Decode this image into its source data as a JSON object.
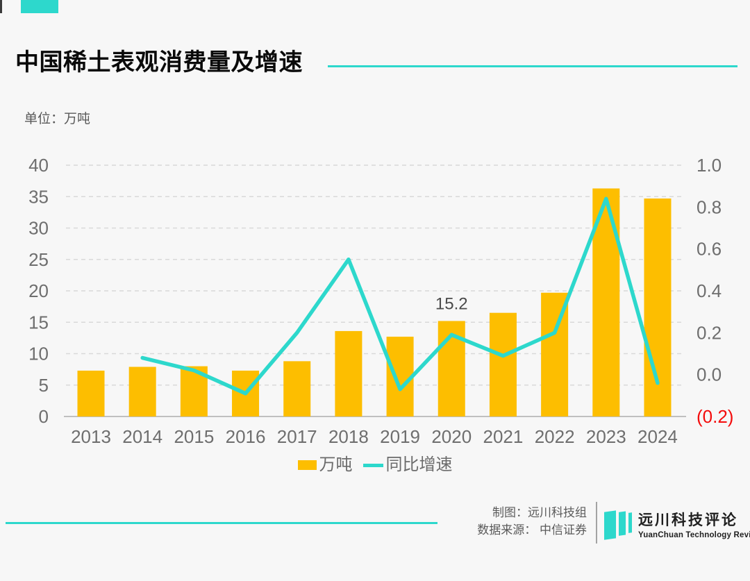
{
  "header": {
    "title": "中国稀土表观消费量及增速",
    "unit_label": "单位：万吨"
  },
  "chart_data": {
    "type": "bar",
    "title": "中国稀土表观消费量及增速",
    "categories": [
      "2013",
      "2014",
      "2015",
      "2016",
      "2017",
      "2018",
      "2019",
      "2020",
      "2021",
      "2022",
      "2023",
      "2024"
    ],
    "series": [
      {
        "name": "万吨",
        "type": "bar",
        "axis": "left",
        "values": [
          7.3,
          7.9,
          8.0,
          7.3,
          8.8,
          13.6,
          12.7,
          15.2,
          16.5,
          19.7,
          36.3,
          34.7
        ]
      },
      {
        "name": "同比增速",
        "type": "line",
        "axis": "right",
        "values": [
          null,
          0.08,
          0.02,
          -0.09,
          0.2,
          0.55,
          -0.07,
          0.19,
          0.09,
          0.2,
          0.84,
          -0.04
        ]
      }
    ],
    "left_axis": {
      "min": 0,
      "max": 40,
      "step": 5,
      "tick_labels": [
        "0",
        "5",
        "10",
        "15",
        "20",
        "25",
        "30",
        "35",
        "40"
      ]
    },
    "right_axis": {
      "min": -0.2,
      "max": 1.0,
      "step": 0.2,
      "tick_labels": [
        "1.0",
        "0.8",
        "0.6",
        "0.4",
        "0.2",
        "0.0",
        "(0.2)"
      ]
    },
    "data_labels": [
      {
        "category": "2020",
        "text": "15.2"
      }
    ],
    "grid": "horizontal-dashed",
    "legend_position": "bottom"
  },
  "legend": {
    "items": [
      {
        "label": "万吨",
        "swatch": "bar"
      },
      {
        "label": "同比增速",
        "swatch": "line"
      }
    ]
  },
  "footer": {
    "credit_line1": "制图：远川科技组",
    "credit_line2": "数据来源： 中信证券",
    "logo_cn": "远川科技评论",
    "logo_en": "YuanChuan Technology Review"
  },
  "colors": {
    "background": "#f7f7f7",
    "accent_teal": "#2dd8cc",
    "bar_yellow": "#fdbe00",
    "axis_text": "#6e6e6e",
    "negative_tick_red": "#f40c0c"
  }
}
